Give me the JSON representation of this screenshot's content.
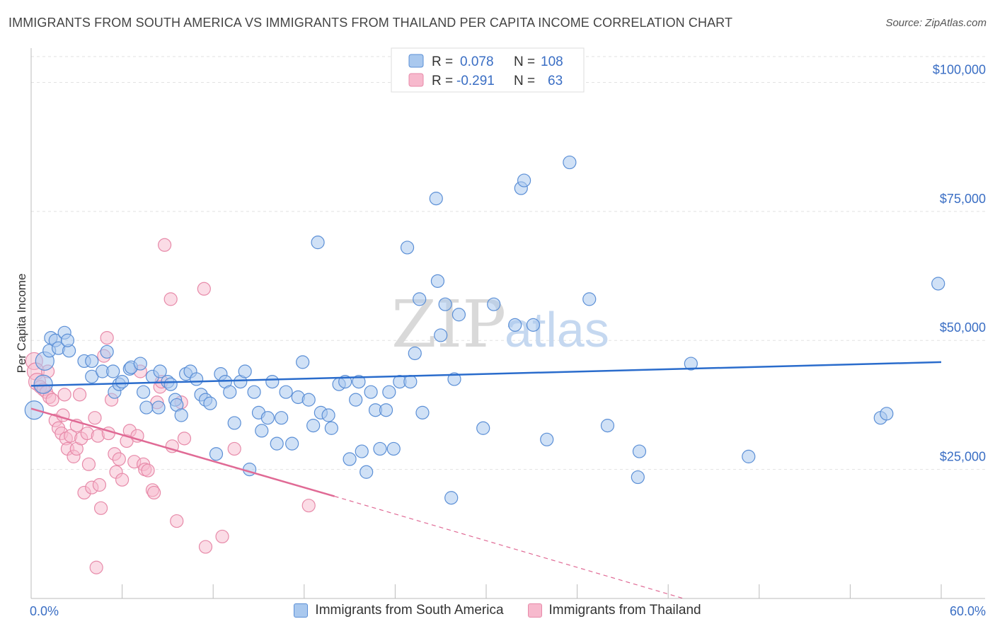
{
  "chart_data": {
    "type": "scatter",
    "title": "IMMIGRANTS FROM SOUTH AMERICA VS IMMIGRANTS FROM THAILAND PER CAPITA INCOME CORRELATION CHART",
    "source": "Source: ZipAtlas.com",
    "ylabel": "Per Capita Income",
    "xlim": [
      0,
      60
    ],
    "ylim": [
      0,
      105000
    ],
    "x_tick_labels": [
      "0.0%",
      "60.0%"
    ],
    "y_ticks": [
      {
        "value": 25000,
        "label": "$25,000"
      },
      {
        "value": 50000,
        "label": "$50,000"
      },
      {
        "value": 75000,
        "label": "$75,000"
      },
      {
        "value": 100000,
        "label": "$100,000"
      }
    ],
    "watermark": {
      "zip": "ZIP",
      "atlas": "atlas"
    },
    "colors": {
      "blue_fill": "#a9c8ee",
      "blue_stroke": "#5b8fd6",
      "blue_line": "#2a6ccc",
      "pink_fill": "#f7b9cd",
      "pink_stroke": "#e78aa9",
      "pink_line": "#e06a95"
    },
    "legend": {
      "rows": [
        {
          "r_label": "R =",
          "r_value": "0.078",
          "n_label": "N =",
          "n_value": "108"
        },
        {
          "r_label": "R =",
          "r_value": "-0.291",
          "n_label": "N =",
          "n_value": "63"
        }
      ]
    },
    "series": [
      {
        "name": "Immigrants from South America",
        "trend": {
          "x0": 0,
          "y0": 41200,
          "x1": 60,
          "y1": 45800
        },
        "points": [
          [
            0.2,
            36500
          ],
          [
            0.8,
            41500
          ],
          [
            0.9,
            46000
          ],
          [
            1.2,
            48000
          ],
          [
            1.3,
            50500
          ],
          [
            1.6,
            50000
          ],
          [
            1.8,
            48500
          ],
          [
            2.2,
            51500
          ],
          [
            2.5,
            48000
          ],
          [
            2.4,
            50000
          ],
          [
            3.5,
            46000
          ],
          [
            4.0,
            46000
          ],
          [
            4.0,
            43000
          ],
          [
            4.7,
            44000
          ],
          [
            5.0,
            47800
          ],
          [
            5.4,
            44000
          ],
          [
            5.5,
            40000
          ],
          [
            5.8,
            41500
          ],
          [
            6.0,
            42000
          ],
          [
            6.5,
            44500
          ],
          [
            6.6,
            44800
          ],
          [
            7.2,
            45500
          ],
          [
            7.4,
            40000
          ],
          [
            7.6,
            37000
          ],
          [
            8.0,
            43000
          ],
          [
            8.5,
            44000
          ],
          [
            8.4,
            37000
          ],
          [
            9.0,
            42000
          ],
          [
            9.2,
            41500
          ],
          [
            9.5,
            38500
          ],
          [
            9.6,
            37500
          ],
          [
            9.9,
            35500
          ],
          [
            10.2,
            43500
          ],
          [
            10.5,
            44000
          ],
          [
            10.9,
            42500
          ],
          [
            11.2,
            39500
          ],
          [
            11.5,
            38500
          ],
          [
            11.8,
            37800
          ],
          [
            12.2,
            28000
          ],
          [
            12.5,
            43500
          ],
          [
            12.8,
            42000
          ],
          [
            13.1,
            40000
          ],
          [
            13.4,
            34000
          ],
          [
            13.8,
            42000
          ],
          [
            14.1,
            44000
          ],
          [
            14.4,
            25000
          ],
          [
            14.7,
            40000
          ],
          [
            15.0,
            36000
          ],
          [
            15.2,
            32500
          ],
          [
            15.6,
            35000
          ],
          [
            15.9,
            42000
          ],
          [
            16.2,
            30000
          ],
          [
            16.5,
            35000
          ],
          [
            16.8,
            40000
          ],
          [
            17.2,
            30000
          ],
          [
            17.6,
            39000
          ],
          [
            17.9,
            45800
          ],
          [
            18.3,
            38500
          ],
          [
            18.6,
            33500
          ],
          [
            18.9,
            69000
          ],
          [
            19.1,
            36000
          ],
          [
            19.6,
            35500
          ],
          [
            19.8,
            33000
          ],
          [
            20.3,
            41500
          ],
          [
            20.7,
            42000
          ],
          [
            21.0,
            27000
          ],
          [
            21.4,
            38500
          ],
          [
            21.6,
            42000
          ],
          [
            21.8,
            28500
          ],
          [
            22.1,
            24500
          ],
          [
            22.4,
            40000
          ],
          [
            22.7,
            36500
          ],
          [
            23.0,
            29000
          ],
          [
            23.4,
            36500
          ],
          [
            23.6,
            40000
          ],
          [
            23.9,
            29000
          ],
          [
            24.3,
            42000
          ],
          [
            24.8,
            68000
          ],
          [
            25.0,
            42000
          ],
          [
            25.3,
            47500
          ],
          [
            25.6,
            58000
          ],
          [
            25.8,
            36000
          ],
          [
            26.7,
            77500
          ],
          [
            26.8,
            61500
          ],
          [
            27.0,
            51000
          ],
          [
            27.3,
            57000
          ],
          [
            27.7,
            19500
          ],
          [
            27.9,
            42500
          ],
          [
            28.2,
            55000
          ],
          [
            29.8,
            33000
          ],
          [
            30.5,
            57000
          ],
          [
            31.9,
            53000
          ],
          [
            32.3,
            79500
          ],
          [
            32.5,
            81000
          ],
          [
            33.1,
            53000
          ],
          [
            34.0,
            30800
          ],
          [
            35.5,
            84500
          ],
          [
            36.8,
            58000
          ],
          [
            38.0,
            33500
          ],
          [
            40.0,
            23500
          ],
          [
            40.1,
            28500
          ],
          [
            43.5,
            45500
          ],
          [
            47.3,
            27500
          ],
          [
            56.0,
            35000
          ],
          [
            56.4,
            35800
          ],
          [
            59.8,
            61000
          ]
        ]
      },
      {
        "name": "Immigrants from Thailand",
        "trend": {
          "x0": 0,
          "y0": 36800,
          "x1": 20,
          "y1": 19800,
          "dash_x1": 43,
          "dash_y1": 0
        },
        "points": [
          [
            0.2,
            46000
          ],
          [
            0.3,
            44000
          ],
          [
            0.4,
            42000
          ],
          [
            0.6,
            41000
          ],
          [
            0.8,
            40500
          ],
          [
            1.0,
            40000
          ],
          [
            1.1,
            44000
          ],
          [
            1.2,
            39000
          ],
          [
            1.4,
            38500
          ],
          [
            1.6,
            34500
          ],
          [
            1.8,
            33000
          ],
          [
            2.0,
            32000
          ],
          [
            2.1,
            35500
          ],
          [
            2.2,
            39500
          ],
          [
            2.3,
            31000
          ],
          [
            2.4,
            29000
          ],
          [
            2.6,
            31500
          ],
          [
            2.8,
            27500
          ],
          [
            3.0,
            33500
          ],
          [
            3.0,
            29000
          ],
          [
            3.2,
            39500
          ],
          [
            3.3,
            31000
          ],
          [
            3.5,
            20500
          ],
          [
            3.7,
            32000
          ],
          [
            3.8,
            26000
          ],
          [
            4.0,
            21500
          ],
          [
            4.2,
            35000
          ],
          [
            4.4,
            31500
          ],
          [
            4.5,
            22000
          ],
          [
            4.6,
            17500
          ],
          [
            4.8,
            47000
          ],
          [
            5.0,
            50500
          ],
          [
            5.1,
            32000
          ],
          [
            5.3,
            38500
          ],
          [
            5.5,
            28000
          ],
          [
            5.6,
            24500
          ],
          [
            5.8,
            27000
          ],
          [
            6.0,
            23000
          ],
          [
            6.3,
            30500
          ],
          [
            6.5,
            32500
          ],
          [
            6.8,
            26500
          ],
          [
            7.0,
            31500
          ],
          [
            7.2,
            44000
          ],
          [
            7.4,
            26000
          ],
          [
            7.5,
            25000
          ],
          [
            7.7,
            24800
          ],
          [
            8.0,
            21000
          ],
          [
            8.1,
            20500
          ],
          [
            8.3,
            38000
          ],
          [
            8.5,
            41000
          ],
          [
            8.6,
            42000
          ],
          [
            8.8,
            68500
          ],
          [
            9.2,
            58000
          ],
          [
            9.3,
            29500
          ],
          [
            9.6,
            15000
          ],
          [
            9.9,
            38000
          ],
          [
            10.1,
            31000
          ],
          [
            11.4,
            60000
          ],
          [
            11.5,
            10000
          ],
          [
            12.6,
            12000
          ],
          [
            13.4,
            29000
          ],
          [
            18.3,
            18000
          ],
          [
            4.3,
            6000
          ]
        ]
      }
    ]
  },
  "bottom_legend": {
    "items": [
      "Immigrants from South America",
      "Immigrants from Thailand"
    ]
  }
}
